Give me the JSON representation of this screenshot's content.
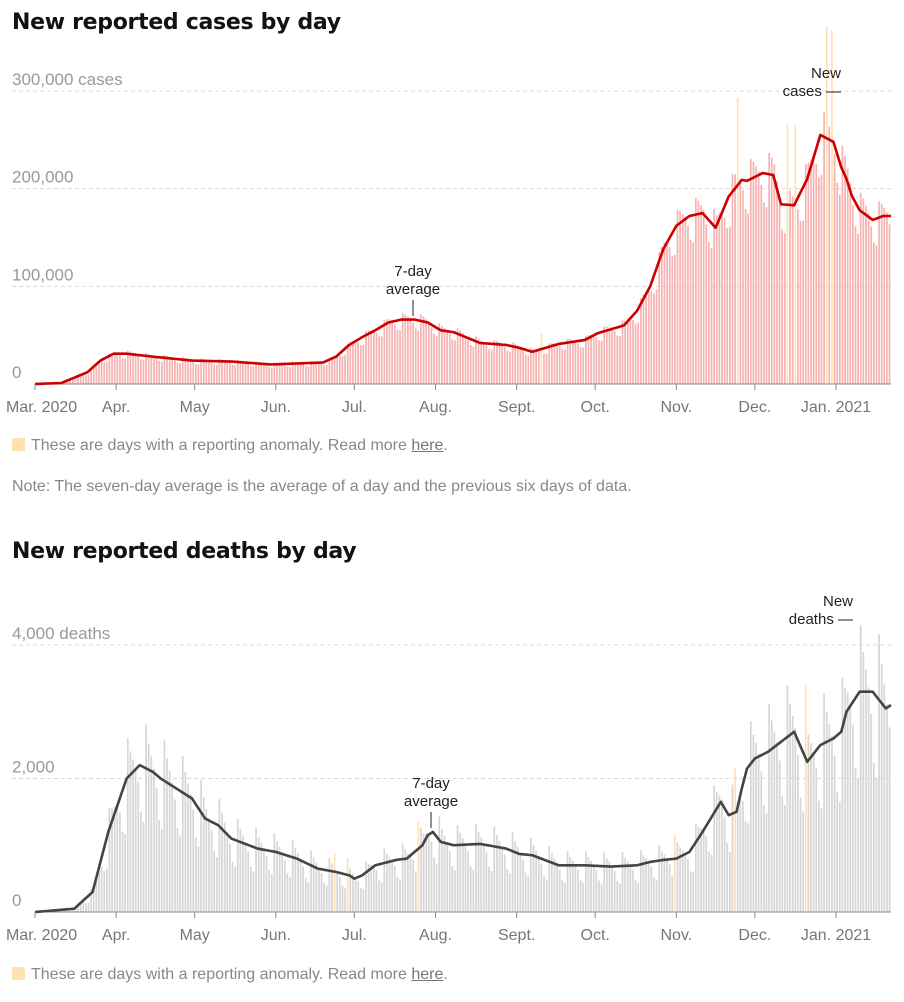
{
  "cases": {
    "title": "New reported cases by day",
    "anomaly_note": "These are days with a reporting anomaly. Read more",
    "anomaly_link": "here",
    "note": "Note: The seven-day average is the average of a day and the previous six days of data.",
    "annot_avg_line1": "7-day",
    "annot_avg_line2": "average",
    "annot_new_line1": "New",
    "annot_new_line2": "cases —",
    "colors": {
      "bar": "#f6b3b3",
      "line": "#cc0000",
      "anomaly": "#fde3b2"
    }
  },
  "deaths": {
    "title": "New reported deaths by day",
    "anomaly_note": "These are days with a reporting anomaly. Read more",
    "anomaly_link": "here",
    "annot_avg_line1": "7-day",
    "annot_avg_line2": "average",
    "annot_new_line1": "New",
    "annot_new_line2": "deaths —",
    "colors": {
      "bar": "#d6d6d6",
      "line": "#444444",
      "anomaly": "#fde3b2"
    }
  },
  "chart_data": [
    {
      "type": "bar",
      "title": "New reported cases by day",
      "ylim": [
        0,
        300000
      ],
      "y_ticks": [
        "0",
        "100,000",
        "200,000",
        "300,000 cases"
      ],
      "y_tick_values": [
        0,
        100000,
        200000,
        300000
      ],
      "x_ticks": [
        "Mar. 2020",
        "Apr.",
        "May",
        "Jun.",
        "Jul.",
        "Aug.",
        "Sept.",
        "Oct.",
        "Nov.",
        "Dec.",
        "Jan. 2021"
      ],
      "x_tick_days": [
        0,
        31,
        61,
        92,
        122,
        153,
        184,
        214,
        245,
        275,
        306
      ],
      "total_days": 327,
      "seven_day_average": {
        "days": [
          0,
          10,
          20,
          25,
          30,
          35,
          45,
          60,
          75,
          90,
          100,
          110,
          115,
          120,
          125,
          130,
          135,
          140,
          145,
          150,
          155,
          160,
          170,
          180,
          185,
          190,
          200,
          210,
          215,
          225,
          230,
          235,
          240,
          245,
          250,
          255,
          260,
          265,
          270,
          272,
          275,
          278,
          282,
          285,
          290,
          295,
          298,
          300,
          305,
          308,
          310,
          312,
          315,
          320,
          324,
          327
        ],
        "values": [
          0,
          1000,
          12000,
          24000,
          31000,
          31000,
          28000,
          24000,
          23000,
          20000,
          21000,
          22000,
          28000,
          40000,
          48000,
          55000,
          63000,
          66000,
          66000,
          63000,
          55000,
          53000,
          42000,
          40000,
          37000,
          33000,
          41000,
          45000,
          52000,
          60000,
          75000,
          100000,
          138000,
          162000,
          172000,
          175000,
          160000,
          192000,
          209000,
          208000,
          212000,
          216000,
          214000,
          184000,
          183000,
          210000,
          237000,
          255000,
          248000,
          222000,
          210000,
          193000,
          178000,
          168000,
          172000,
          172000
        ]
      },
      "daily": {
        "note": "daily bars ≈ average with weekly oscillation",
        "anomaly_days": [
          193,
          268,
          287,
          290,
          304,
          302
        ]
      },
      "annotations": [
        "7-day average",
        "New cases"
      ]
    },
    {
      "type": "bar",
      "title": "New reported deaths by day",
      "ylim": [
        0,
        4000
      ],
      "y_ticks": [
        "0",
        "2,000",
        "4,000 deaths"
      ],
      "y_tick_values": [
        0,
        2000,
        4000
      ],
      "x_ticks": [
        "Mar. 2020",
        "Apr.",
        "May",
        "Jun.",
        "Jul.",
        "Aug.",
        "Sept.",
        "Oct.",
        "Nov.",
        "Dec.",
        "Jan. 2021"
      ],
      "x_tick_days": [
        0,
        31,
        61,
        92,
        122,
        153,
        184,
        214,
        245,
        275,
        306
      ],
      "total_days": 327,
      "seven_day_average": {
        "days": [
          0,
          15,
          22,
          28,
          35,
          40,
          45,
          48,
          52,
          56,
          60,
          65,
          70,
          75,
          85,
          92,
          100,
          108,
          115,
          120,
          122,
          125,
          130,
          138,
          142,
          148,
          150,
          152,
          155,
          160,
          170,
          180,
          185,
          190,
          200,
          210,
          220,
          230,
          235,
          240,
          245,
          250,
          255,
          262,
          265,
          268,
          270,
          272,
          275,
          280,
          285,
          290,
          295,
          300,
          305,
          308,
          310,
          315,
          320,
          325,
          327
        ],
        "values": [
          0,
          50,
          300,
          1200,
          2000,
          2200,
          2100,
          2000,
          1900,
          1800,
          1700,
          1400,
          1300,
          1100,
          950,
          900,
          800,
          650,
          600,
          550,
          500,
          550,
          700,
          780,
          800,
          1000,
          1150,
          1200,
          1050,
          1000,
          1020,
          950,
          870,
          850,
          700,
          700,
          680,
          700,
          750,
          780,
          800,
          900,
          1200,
          1650,
          1450,
          1500,
          1850,
          2150,
          2300,
          2400,
          2550,
          2700,
          2250,
          2500,
          2600,
          2700,
          3000,
          3300,
          3300,
          3050,
          3100
        ]
      },
      "daily": {
        "note": "daily bars ≈ average with strong weekly oscillation",
        "anomaly_days": [
          114,
          119,
          146,
          244,
          267,
          294
        ]
      },
      "annotations": [
        "7-day average",
        "New deaths"
      ]
    }
  ]
}
